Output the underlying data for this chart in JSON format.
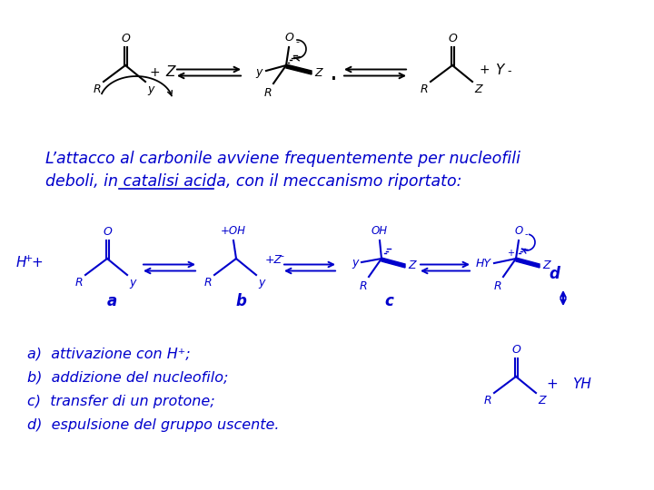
{
  "bg_color": "#ffffff",
  "text_color": "#0000cc",
  "black": "#000000",
  "title_line1": "L’attacco al carbonile avviene frequentemente per nucleofili",
  "title_line2": "deboli, in catalisi acida, con il meccanismo riportato:",
  "list_items": [
    "a)  attivazione con H⁺;",
    "b)  addizione del nucleofilo;",
    "c)  transfer di un protone;",
    "d)  espulsione del gruppo uscente."
  ],
  "fig_width": 7.2,
  "fig_height": 5.4,
  "dpi": 100
}
